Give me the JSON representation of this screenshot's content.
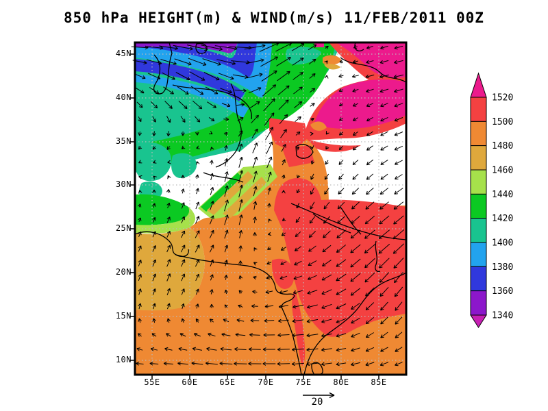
{
  "header": {
    "title": "850 hPa HEIGHT(m) & WIND(m/s) 11/FEB/2011 00Z"
  },
  "map": {
    "lat_labels": [
      "45N",
      "40N",
      "35N",
      "30N",
      "25N",
      "20N",
      "15N",
      "10N"
    ],
    "lon_labels": [
      "55E",
      "60E",
      "65E",
      "70E",
      "75E",
      "80E",
      "85E"
    ]
  },
  "colorbar": {
    "labels": [
      "1520",
      "1500",
      "1480",
      "1460",
      "1440",
      "1420",
      "1400",
      "1380",
      "1360",
      "1340"
    ],
    "segment_colors_top_to_bottom": [
      "#f44141",
      "#ef8933",
      "#dfa83c",
      "#a6e14b",
      "#0bc922",
      "#19c48f",
      "#22a3ee",
      "#3038dd",
      "#8c17cb"
    ],
    "above_max_color": "#ec1a8c",
    "below_min_color": "#c720b4"
  },
  "wind_reference": {
    "label": "20",
    "speed_ms": 20
  },
  "chart_data": {
    "type": "heatmap",
    "title": "850 hPa HEIGHT(m) & WIND(m/s) 11/FEB/2011 00Z",
    "level_hPa": 850,
    "valid_time": "11/FEB/2011 00Z",
    "x_tick_labels": [
      "55E",
      "60E",
      "65E",
      "70E",
      "75E",
      "80E",
      "85E"
    ],
    "y_tick_labels": [
      "45N",
      "40N",
      "35N",
      "30N",
      "25N",
      "20N",
      "15N",
      "10N"
    ],
    "lon_range_deg_east": [
      52.7,
      88.7
    ],
    "lat_range_deg_north": [
      8.3,
      46.3
    ],
    "height_levels_m": [
      1340,
      1360,
      1380,
      1400,
      1420,
      1440,
      1460,
      1480,
      1500,
      1520
    ],
    "shaded_features": [
      "Low heights (1340-1420 m, purple/blue/cyan bands) across the far north with a trough dipping near 70E 44N",
      "1420-1440 m green belt over central Asia 35-45N",
      "Height maxima above 1520 m (magenta blobs) over northwest China near 78-88E 38-44N",
      "White unshaded areas over the Tibetan Plateau and Iranian highlands (below-ground 850 hPa)",
      "1480-1500 m orange field over most of India and the Arabian Sea",
      "1500-1520 m red area over east-central India and the Bay of Bengal",
      "1460-1480 m tan band along the western edge near 55-60E 15-30N"
    ],
    "wind_reference_ms": 20,
    "wind_grid_ms": {
      "nx": 9,
      "ny": 11,
      "u": [
        [
          16,
          18,
          20,
          22,
          18,
          10,
          0,
          -6,
          -8
        ],
        [
          10,
          12,
          14,
          14,
          14,
          8,
          -4,
          -8,
          -9
        ],
        [
          4,
          6,
          8,
          6,
          10,
          6,
          -3,
          -6,
          -8
        ],
        [
          -2,
          -3,
          -2,
          2,
          6,
          2,
          -3,
          -6,
          -8
        ],
        [
          -2,
          -1,
          1,
          3,
          3,
          -2,
          -4,
          -6,
          -7
        ],
        [
          1,
          2,
          3,
          3,
          0,
          -3,
          -6,
          -8,
          -9
        ],
        [
          2,
          3,
          4,
          2,
          -3,
          -6,
          -8,
          -10,
          -10
        ],
        [
          2,
          3,
          3,
          0,
          -5,
          -8,
          -9,
          -9,
          -8
        ],
        [
          1,
          2,
          1,
          -4,
          -8,
          -10,
          -9,
          -7,
          -6
        ],
        [
          -4,
          -6,
          -8,
          -10,
          -11,
          -11,
          -9,
          -7,
          -6
        ],
        [
          -8,
          -10,
          -12,
          -13,
          -12,
          -11,
          -9,
          -8,
          -7
        ]
      ],
      "v": [
        [
          0,
          -2,
          -4,
          -2,
          8,
          6,
          0,
          -2,
          -2
        ],
        [
          -4,
          -6,
          -8,
          -4,
          10,
          6,
          -1,
          -2,
          -2
        ],
        [
          -5,
          -7,
          -7,
          0,
          12,
          4,
          -2,
          -3,
          -3
        ],
        [
          -3,
          -4,
          -1,
          6,
          12,
          0,
          -3,
          -4,
          -3
        ],
        [
          0,
          2,
          4,
          12,
          9,
          -5,
          -5,
          -5,
          -4
        ],
        [
          3,
          5,
          7,
          12,
          3,
          -7,
          -6,
          -7,
          -7
        ],
        [
          5,
          6,
          7,
          7,
          -2,
          -5,
          -7,
          -8,
          -9
        ],
        [
          6,
          7,
          6,
          4,
          -2,
          -3,
          -6,
          -9,
          -10
        ],
        [
          5,
          5,
          4,
          2,
          -1,
          -2,
          -4,
          -7,
          -8
        ],
        [
          2,
          2,
          2,
          1,
          0,
          -1,
          -2,
          -4,
          -5
        ],
        [
          0,
          0,
          1,
          0,
          0,
          -1,
          -1,
          -2,
          -2
        ]
      ]
    }
  }
}
